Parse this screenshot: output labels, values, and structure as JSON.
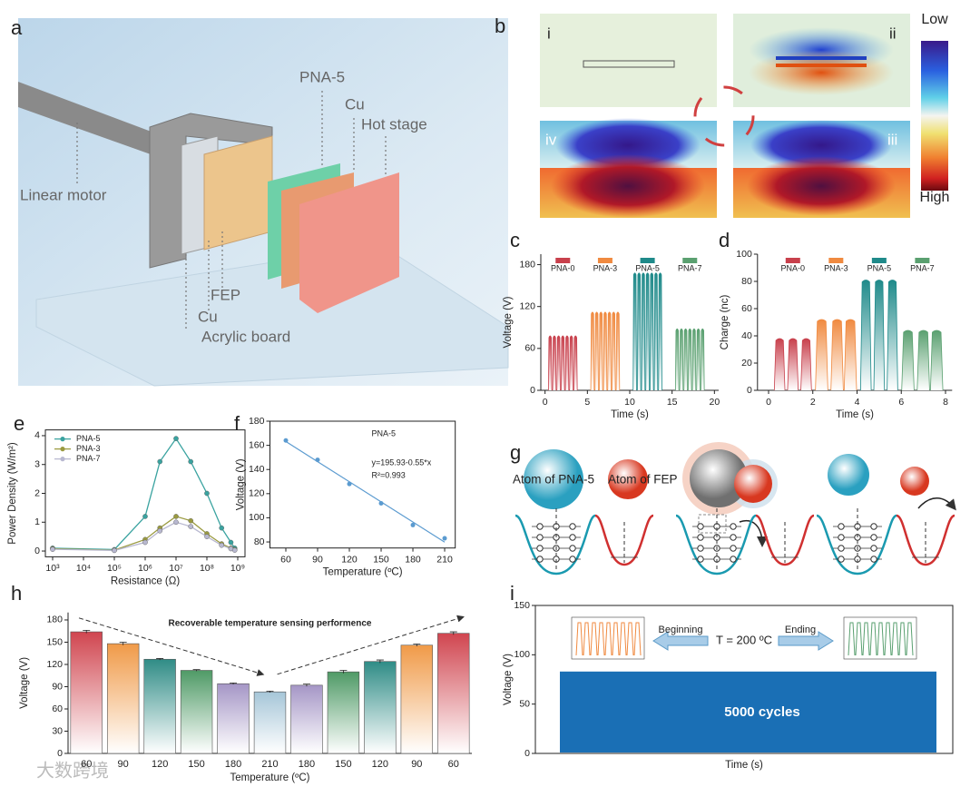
{
  "figure": {
    "panel_labels": [
      "a",
      "b",
      "c",
      "d",
      "e",
      "f",
      "g",
      "h",
      "i"
    ],
    "a": {
      "labels": [
        "PNA-5",
        "Cu",
        "Hot stage",
        "Linear motor",
        "FEP",
        "Cu",
        "Acrylic board"
      ]
    },
    "b": {
      "panels": [
        "i",
        "ii",
        "iii",
        "iv"
      ],
      "colorbar": [
        "Low",
        "High"
      ]
    },
    "g": {
      "labels": [
        "Atom of PNA-5",
        "Atom of FEP"
      ]
    },
    "watermark": "大数跨境"
  },
  "chart_data": [
    {
      "type": "pulse",
      "xlabel": "Time (s)",
      "ylabel": "Voltage (V)",
      "xlim": [
        -0.5,
        20.5
      ],
      "xticks": [
        0,
        5,
        10,
        15,
        20
      ],
      "ylim": [
        0,
        195
      ],
      "yticks": [
        0,
        60,
        120,
        180
      ],
      "series": [
        {
          "name": "PNA-0",
          "color": "#c8404c",
          "x": [
            0.6,
            1.1,
            1.6,
            2.1,
            2.6,
            3.1,
            3.6
          ],
          "values": [
            78,
            78,
            78,
            78,
            78,
            78,
            78
          ]
        },
        {
          "name": "PNA-3",
          "color": "#f08a40",
          "x": [
            5.6,
            6.1,
            6.6,
            7.1,
            7.6,
            8.1,
            8.6
          ],
          "values": [
            112,
            112,
            112,
            112,
            112,
            112,
            112
          ]
        },
        {
          "name": "PNA-5",
          "color": "#1f8a8a",
          "x": [
            10.6,
            11.1,
            11.6,
            12.1,
            12.6,
            13.1,
            13.6
          ],
          "values": [
            168,
            168,
            168,
            168,
            168,
            168,
            168
          ]
        },
        {
          "name": "PNA-7",
          "color": "#5aa070",
          "x": [
            15.6,
            16.1,
            16.6,
            17.1,
            17.6,
            18.1,
            18.6
          ],
          "values": [
            88,
            88,
            88,
            88,
            88,
            88,
            88
          ]
        }
      ]
    },
    {
      "type": "pulse",
      "xlabel": "Time  (s)",
      "ylabel": "Charge (nc)",
      "xlim": [
        -0.5,
        8.3
      ],
      "xticks": [
        0,
        2,
        4,
        6,
        8
      ],
      "ylim": [
        0,
        100
      ],
      "yticks": [
        0,
        20,
        40,
        60,
        80,
        100
      ],
      "series": [
        {
          "name": "PNA-0",
          "color": "#c8404c",
          "x": [
            0.5,
            1.1,
            1.7
          ],
          "values": [
            38,
            38,
            38
          ]
        },
        {
          "name": "PNA-3",
          "color": "#f08a40",
          "x": [
            2.4,
            3.1,
            3.7
          ],
          "values": [
            52,
            52,
            52
          ]
        },
        {
          "name": "PNA-5",
          "color": "#1f8a8a",
          "x": [
            4.4,
            5.0,
            5.6
          ],
          "values": [
            81,
            81,
            81
          ]
        },
        {
          "name": "PNA-7",
          "color": "#5aa070",
          "x": [
            6.3,
            7.0,
            7.6
          ],
          "values": [
            44,
            44,
            44
          ]
        }
      ]
    },
    {
      "type": "line",
      "xlabel": "Resistance (Ω)",
      "ylabel": "Power Density (W/m²)",
      "xlog": true,
      "legend": "top-left",
      "x": [
        1000,
        100000,
        1000000,
        3000000,
        10000000,
        30000000,
        100000000,
        300000000,
        600000000,
        800000000
      ],
      "xlim": [
        1000,
        1000000000
      ],
      "xticks": [
        {
          "value": 1000,
          "label": "10³"
        },
        {
          "value": 10000,
          "label": "10⁴"
        },
        {
          "value": 100000,
          "label": "10⁵"
        },
        {
          "value": 1000000,
          "label": "10⁶"
        },
        {
          "value": 10000000,
          "label": "10⁷"
        },
        {
          "value": 100000000,
          "label": "10⁸"
        },
        {
          "value": 1000000000,
          "label": "10⁹"
        }
      ],
      "ylim": [
        -0.2,
        4.2
      ],
      "yticks": [
        0,
        1,
        2,
        3,
        4
      ],
      "series": [
        {
          "name": "PNA-5",
          "color": "#3aa3a0",
          "values": [
            0.1,
            0.05,
            1.2,
            3.1,
            3.9,
            3.1,
            2.0,
            0.8,
            0.3,
            0.1
          ]
        },
        {
          "name": "PNA-3",
          "color": "#9a9a40",
          "values": [
            0.08,
            0.03,
            0.4,
            0.8,
            1.2,
            1.05,
            0.6,
            0.25,
            0.1,
            0.05
          ]
        },
        {
          "name": "PNA-7",
          "color": "#b8b8d0",
          "values": [
            0.06,
            0.02,
            0.3,
            0.7,
            1.0,
            0.85,
            0.5,
            0.2,
            0.08,
            0.03
          ]
        }
      ]
    },
    {
      "type": "scatter",
      "xlabel": "Temperature (ºC)",
      "ylabel": "Voltage (V)",
      "color": "#5b9bd0",
      "x": [
        60,
        90,
        120,
        150,
        180,
        210
      ],
      "values": [
        164,
        148,
        128,
        112,
        94,
        83
      ],
      "xlim": [
        45,
        220
      ],
      "xticks": [
        60,
        90,
        120,
        150,
        180,
        210
      ],
      "ylim": [
        75,
        180
      ],
      "yticks": [
        80,
        100,
        120,
        140,
        160,
        180
      ],
      "fit": true,
      "annotations": [
        "PNA-5",
        "y=195.93-0.55*x",
        "R²=0.993"
      ]
    },
    {
      "type": "bar",
      "xlabel": "Temperature (ºC)",
      "ylabel": "Voltage (V)",
      "categories": [
        "60",
        "90",
        "120",
        "150",
        "180",
        "210",
        "180",
        "150",
        "120",
        "90",
        "60"
      ],
      "values": [
        164,
        148,
        127,
        112,
        94,
        83,
        92,
        110,
        124,
        146,
        162
      ],
      "errors": [
        2,
        2,
        1,
        1,
        1,
        1,
        1.5,
        2,
        2,
        1.5,
        2
      ],
      "colors": [
        "#d0454f",
        "#f09a48",
        "#2f8c86",
        "#4f9a66",
        "#a596c6",
        "#a6c6d8",
        "#a596c6",
        "#4f9a66",
        "#2f8c86",
        "#f09a48",
        "#d0454f"
      ],
      "ylim": [
        0,
        190
      ],
      "yticks": [
        0,
        30,
        60,
        90,
        120,
        150,
        180
      ],
      "annotation": "Recoverable temperature sensing performence"
    },
    {
      "type": "block",
      "xlabel": "Time (s)",
      "ylabel": "Voltage (V)",
      "ylim": [
        0,
        150
      ],
      "yticks": [
        0,
        50,
        100,
        150
      ],
      "series": [
        {
          "name": "5000 cycles",
          "color": "#1a6fb5",
          "values": [
            83
          ]
        }
      ],
      "annotations": [
        "Beginning",
        "T = 200 ºC",
        "Ending"
      ]
    }
  ]
}
